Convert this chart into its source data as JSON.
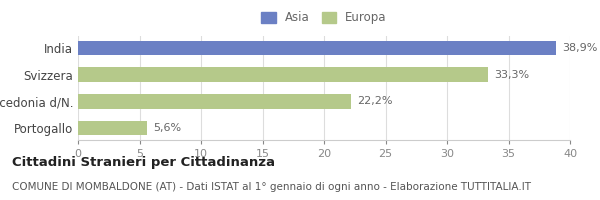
{
  "categories": [
    "India",
    "Svizzera",
    "Macedonia d/N.",
    "Portogallo"
  ],
  "values": [
    38.9,
    33.3,
    22.2,
    5.6
  ],
  "labels": [
    "38,9%",
    "33,3%",
    "22,2%",
    "5,6%"
  ],
  "colors": [
    "#6b80c4",
    "#b5c98a",
    "#b5c98a",
    "#b5c98a"
  ],
  "legend_labels": [
    "Asia",
    "Europa"
  ],
  "legend_colors": [
    "#6b80c4",
    "#b5c98a"
  ],
  "xlim": [
    0,
    40
  ],
  "xticks": [
    0,
    5,
    10,
    15,
    20,
    25,
    30,
    35,
    40
  ],
  "title_bold": "Cittadini Stranieri per Cittadinanza",
  "subtitle": "COMUNE DI MOMBALDONE (AT) - Dati ISTAT al 1° gennaio di ogni anno - Elaborazione TUTTITALIA.IT",
  "background_color": "#ffffff",
  "bar_height": 0.55,
  "label_fontsize": 8.0,
  "tick_fontsize": 8,
  "title_fontsize": 9.5,
  "subtitle_fontsize": 7.5
}
